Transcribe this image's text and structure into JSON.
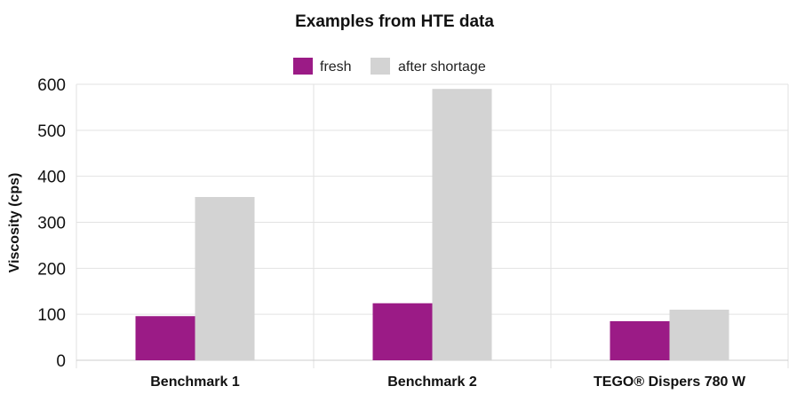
{
  "chart_data": {
    "type": "bar",
    "title": "Examples from HTE data",
    "xlabel": "",
    "ylabel": "Viscosity (cps)",
    "categories": [
      "Benchmark 1",
      "Benchmark 2",
      "TEGO® Dispers 780 W"
    ],
    "series": [
      {
        "name": "fresh",
        "values": [
          96,
          124,
          85
        ],
        "color": "#9b1b86"
      },
      {
        "name": "after shortage",
        "values": [
          355,
          590,
          110
        ],
        "color": "#d3d3d3"
      }
    ],
    "ylim": [
      0,
      600
    ],
    "yticks": [
      0,
      100,
      200,
      300,
      400,
      500,
      600
    ],
    "grid": true,
    "legend_position": "top-center"
  }
}
